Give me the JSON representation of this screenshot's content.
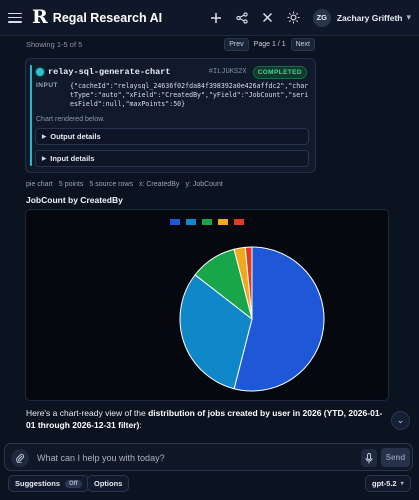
{
  "header": {
    "logo": "R",
    "app_title": "Regal Research AI",
    "user_initials": "ZG",
    "user_name": "Zachary Griffeth",
    "icons": [
      "menu-icon",
      "plus-icon",
      "share-icon",
      "close-icon",
      "theme-sun-icon",
      "chevron-down-icon"
    ]
  },
  "pagination": {
    "showing": "Showing 1-5 of 5",
    "prev": "Prev",
    "page": "Page 1 / 1",
    "next": "Next"
  },
  "tool_card": {
    "name": "relay-sql-generate-chart",
    "id": "#ILJUKS2X",
    "status": "COMPLETED",
    "input_label": "INPUT",
    "input_json": "{\"cacheId\":\"relaysql_24636f02fda84f398392a0e426affdc2\",\"chartType\":\"auto\",\"xField\":\"CreatedBy\",\"yField\":\"JobCount\",\"seriesField\":null,\"maxPoints\":50}",
    "rendered_note": "Chart rendered below.",
    "output_details": "Output details",
    "input_details": "Input details"
  },
  "chart_meta": [
    "pie chart",
    "5 points",
    "5 source rows",
    "x: CreatedBy",
    "y: JobCount"
  ],
  "chart_title": "JobCount by CreatedBy",
  "chart_data": {
    "type": "pie",
    "title": "JobCount by CreatedBy",
    "legend_position": "top",
    "slices": [
      {
        "value": 54.0,
        "color": "#1f58d6"
      },
      {
        "value": 31.5,
        "color": "#0f87c9"
      },
      {
        "value": 10.5,
        "color": "#19a64a"
      },
      {
        "value": 2.5,
        "color": "#f0a81c"
      },
      {
        "value": 1.5,
        "color": "#e03b24"
      }
    ]
  },
  "response": {
    "prefix": "Here's a chart-ready view of the ",
    "bold": "distribution of jobs created by user in 2026 (YTD, 2026-01-01 through 2026-12-31 filter)",
    "suffix": ":"
  },
  "composer": {
    "placeholder": "What can I help you with today?",
    "send_label": "Send"
  },
  "bottom_bar": {
    "suggestions_label": "Suggestions",
    "suggestions_toggle": "Off",
    "options_label": "Options",
    "model_label": "gpt-5.2"
  }
}
